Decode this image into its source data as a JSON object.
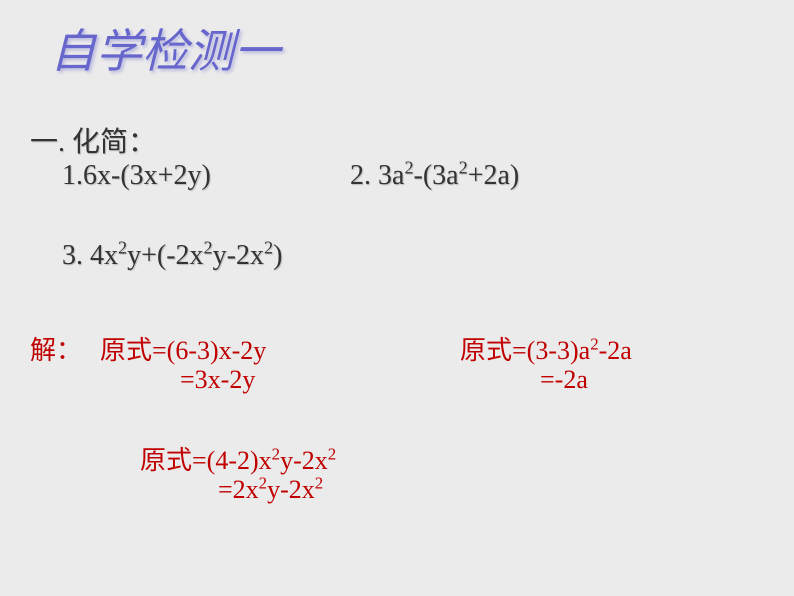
{
  "title": "自学检测一",
  "section_label": "一. 化简：",
  "problems": {
    "p1_num": "1.",
    "p1_expr_a": "6x-(3x+2y)",
    "p2_num": "2. ",
    "p2_a": "3a",
    "p2_b": "-(3a",
    "p2_c": "+2a)",
    "p3_num": "3. ",
    "p3_a": "4x",
    "p3_b": "y+(-2x",
    "p3_c": "y-2x",
    "p3_d": ")"
  },
  "solution_label": "解：",
  "solutions": {
    "s1_l1": "原式=(6-3)x-2y",
    "s1_l2": "=3x-2y",
    "s2_l1_a": "原式=(3-3)a",
    "s2_l1_b": "-2a",
    "s2_l2": "=-2a",
    "s3_l1_a": "原式=(4-2)x",
    "s3_l1_b": "y-2x",
    "s3_l2_a": "=2x",
    "s3_l2_b": "y-2x"
  },
  "sup2": "2",
  "colors": {
    "bg": "#ebebeb",
    "title": "#6666cc",
    "text": "#333333",
    "solution": "#c00000"
  },
  "fonts": {
    "title_size": 46,
    "body_size": 28,
    "solution_size": 26
  }
}
